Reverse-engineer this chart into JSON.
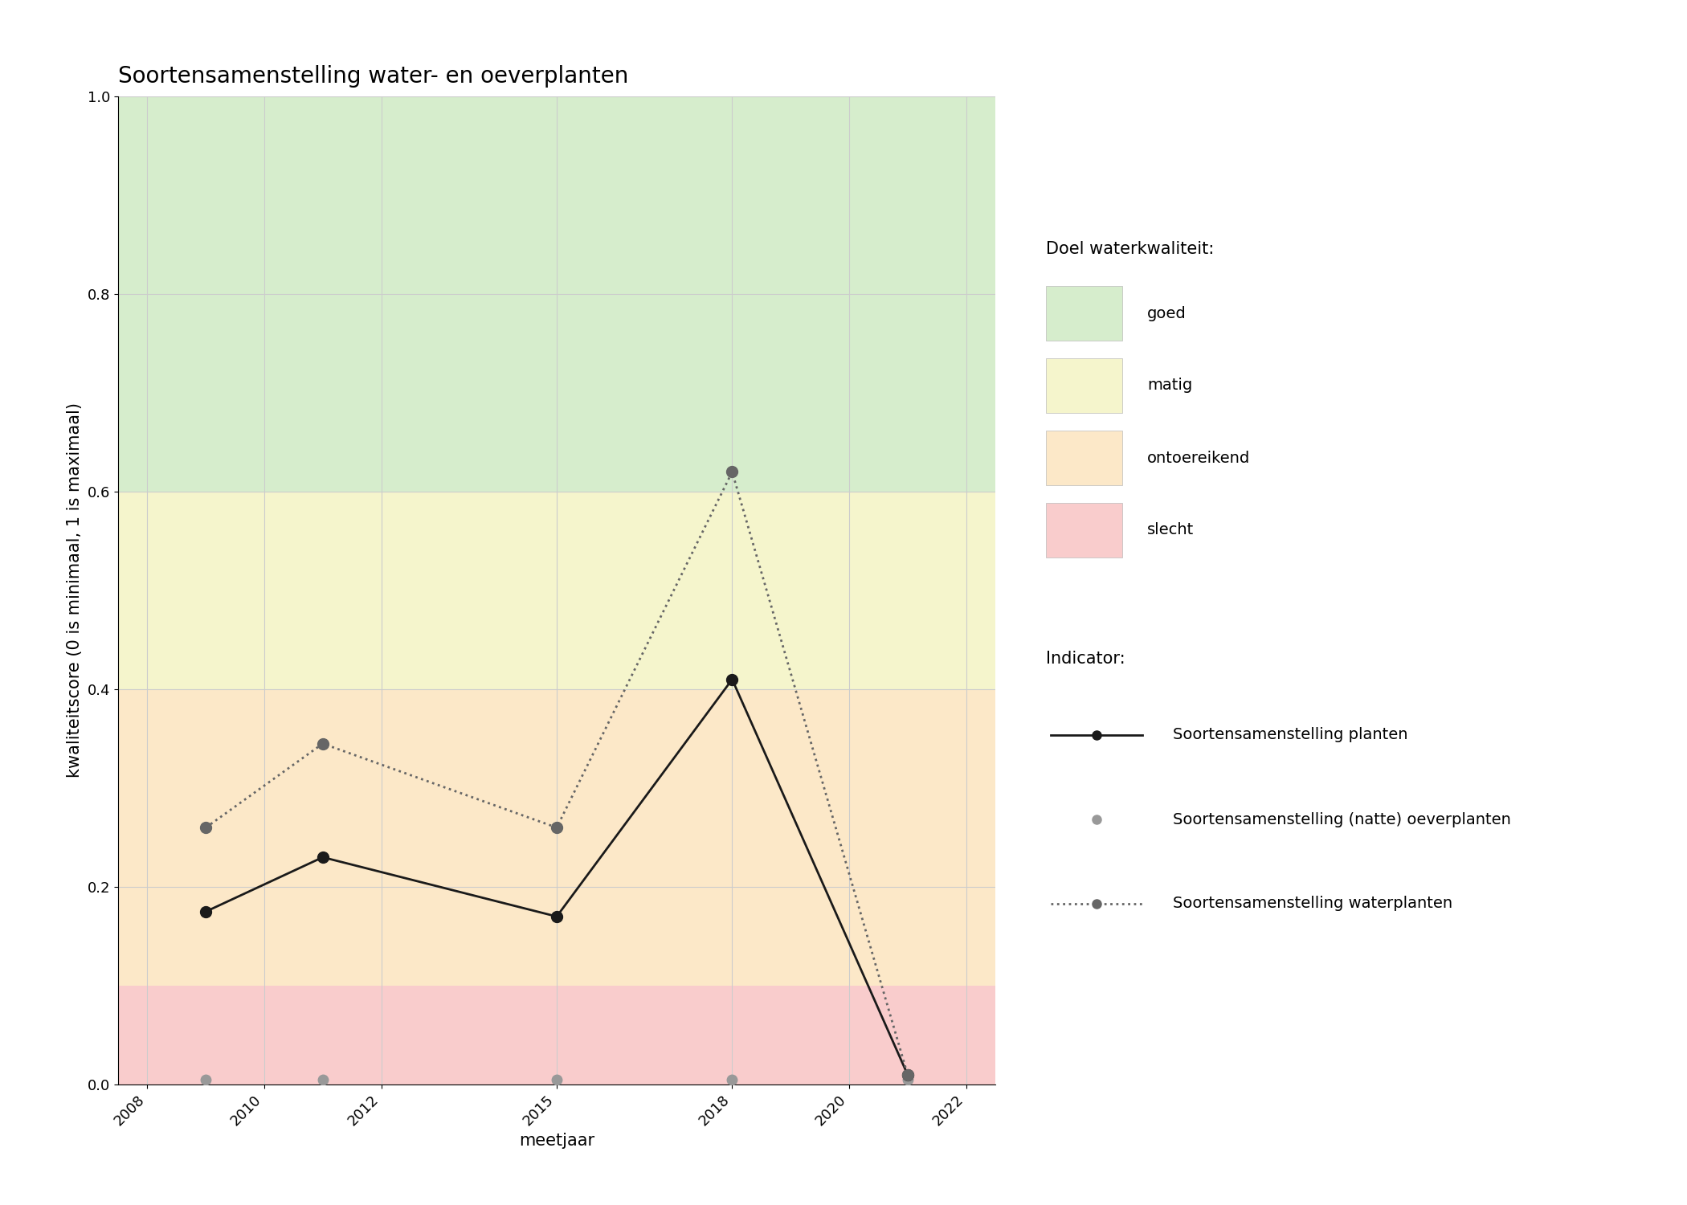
{
  "title": "Soortensamenstelling water- en oeverplanten",
  "xlabel": "meetjaar",
  "ylabel": "kwaliteitscore (0 is minimaal, 1 is maximaal)",
  "xlim": [
    2007.5,
    2022.5
  ],
  "ylim": [
    0.0,
    1.0
  ],
  "xticks": [
    2008,
    2010,
    2012,
    2015,
    2018,
    2020,
    2022
  ],
  "yticks": [
    0.0,
    0.2,
    0.4,
    0.6,
    0.8,
    1.0
  ],
  "background_color": "#ffffff",
  "quality_bands": [
    {
      "name": "goed",
      "ymin": 0.6,
      "ymax": 1.0,
      "color": "#d6edcc"
    },
    {
      "name": "matig",
      "ymin": 0.4,
      "ymax": 0.6,
      "color": "#f5f5cc"
    },
    {
      "name": "ontoereikend",
      "ymin": 0.1,
      "ymax": 0.4,
      "color": "#fce8c8"
    },
    {
      "name": "slecht",
      "ymin": 0.0,
      "ymax": 0.1,
      "color": "#f9cccc"
    }
  ],
  "series_planten": {
    "x": [
      2009,
      2011,
      2015,
      2018,
      2021
    ],
    "y": [
      0.175,
      0.23,
      0.17,
      0.41,
      0.01
    ],
    "color": "#1a1a1a",
    "linestyle": "-",
    "linewidth": 2.0,
    "markersize": 10,
    "marker": "o",
    "label": "Soortensamenstelling planten"
  },
  "series_oeverplanten": {
    "x": [
      2009,
      2011,
      2015,
      2018,
      2021
    ],
    "y": [
      0.005,
      0.005,
      0.005,
      0.005,
      0.005
    ],
    "color": "#999999",
    "markersize": 9,
    "marker": "o",
    "label": "Soortensamenstelling (natte) oeverplanten"
  },
  "series_waterplanten": {
    "x": [
      2009,
      2011,
      2015,
      2018,
      2021
    ],
    "y": [
      0.26,
      0.345,
      0.26,
      0.62,
      0.01
    ],
    "color": "#666666",
    "linestyle": ":",
    "linewidth": 2.0,
    "markersize": 10,
    "marker": "o",
    "label": "Soortensamenstelling waterplanten"
  },
  "legend_title_doel": "Doel waterkwaliteit:",
  "legend_items_doel": [
    "goed",
    "matig",
    "ontoereikend",
    "slecht"
  ],
  "legend_colors_doel": [
    "#d6edcc",
    "#f5f5cc",
    "#fce8c8",
    "#f9cccc"
  ],
  "legend_title_indicator": "Indicator:",
  "grid_color": "#cccccc",
  "grid_linewidth": 0.8,
  "title_fontsize": 20,
  "label_fontsize": 15,
  "tick_fontsize": 13,
  "legend_fontsize": 14,
  "legend_title_fontsize": 15
}
